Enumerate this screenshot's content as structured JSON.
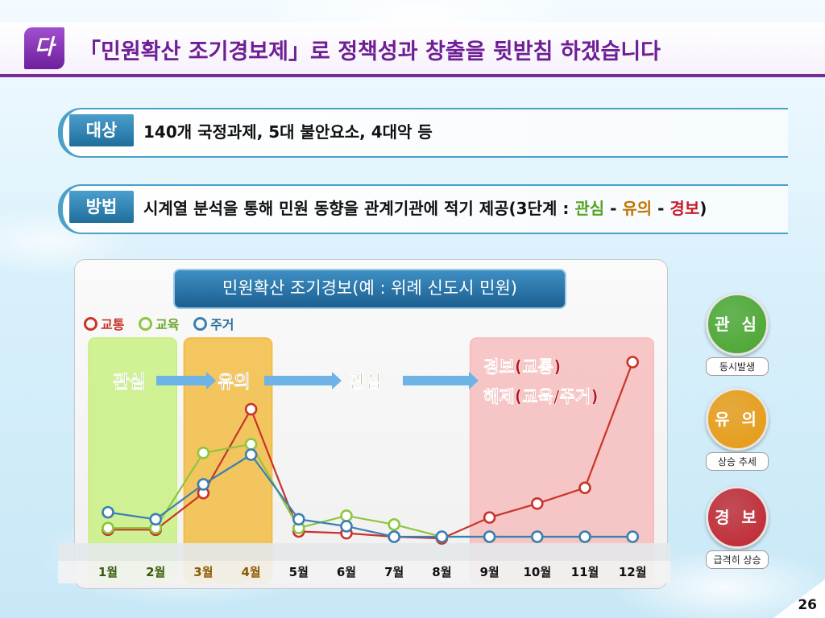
{
  "header": {
    "badge": "다",
    "title": "「민원확산 조기경보제」로 정책성과 창출을 뒷받침 하겠습니다"
  },
  "target": {
    "label": "대상",
    "text": "140개 국정과제, 5대 불안요소, 4대악 등"
  },
  "method": {
    "label": "방법",
    "text_prefix": "시계열 분석을 통해 민원 동향을 관계기관에 적기 제공(3단계 : ",
    "stage1": "관심",
    "sep1": " - ",
    "stage2": "유의",
    "sep2": " - ",
    "stage3": "경보",
    "text_suffix": ")"
  },
  "chart_data": {
    "type": "line",
    "title": "민원확산 조기경보(예 : 위례 신도시 민원)",
    "categories": [
      "1월",
      "2월",
      "3월",
      "4월",
      "5월",
      "6월",
      "7월",
      "8월",
      "9월",
      "10월",
      "11월",
      "12월"
    ],
    "ylim": [
      0,
      100
    ],
    "grid": false,
    "legend_position": "top-left",
    "series": [
      {
        "name": "교통",
        "color": "#c8342a",
        "values": [
          4,
          4,
          25,
          73,
          3,
          2,
          0,
          -1,
          11,
          19,
          28,
          100
        ]
      },
      {
        "name": "교육",
        "color": "#8dc63f",
        "values": [
          5,
          5,
          48,
          53,
          5,
          12,
          7,
          0,
          0,
          0,
          0,
          0
        ]
      },
      {
        "name": "주거",
        "color": "#3a7fb3",
        "values": [
          14,
          10,
          30,
          47,
          10,
          6,
          0,
          0,
          0,
          0,
          0,
          0
        ]
      }
    ],
    "phase_regions": [
      {
        "label": "관심",
        "color": "#c6f07a",
        "from": 0,
        "to": 1
      },
      {
        "label": "유의",
        "color": "#f2b93a",
        "from": 2,
        "to": 3
      },
      {
        "label": "경보(교통)\n해제(교육/주거)",
        "color": "#f6b9b9",
        "from": 8,
        "to": 11
      }
    ],
    "annotations": {
      "phase1": "관심",
      "phase2": "유의",
      "phase3": "관심",
      "alert_line1": "경보(교통)",
      "alert_line2": "해제(교육/주거)"
    }
  },
  "indicators": [
    {
      "label": "관 심",
      "caption": "동시발생",
      "color": "#4aa52e"
    },
    {
      "label": "유 의",
      "caption": "상승 추세",
      "color": "#e89a10"
    },
    {
      "label": "경 보",
      "caption": "급격히 상승",
      "color": "#c0262f"
    }
  ],
  "page_number": "26"
}
